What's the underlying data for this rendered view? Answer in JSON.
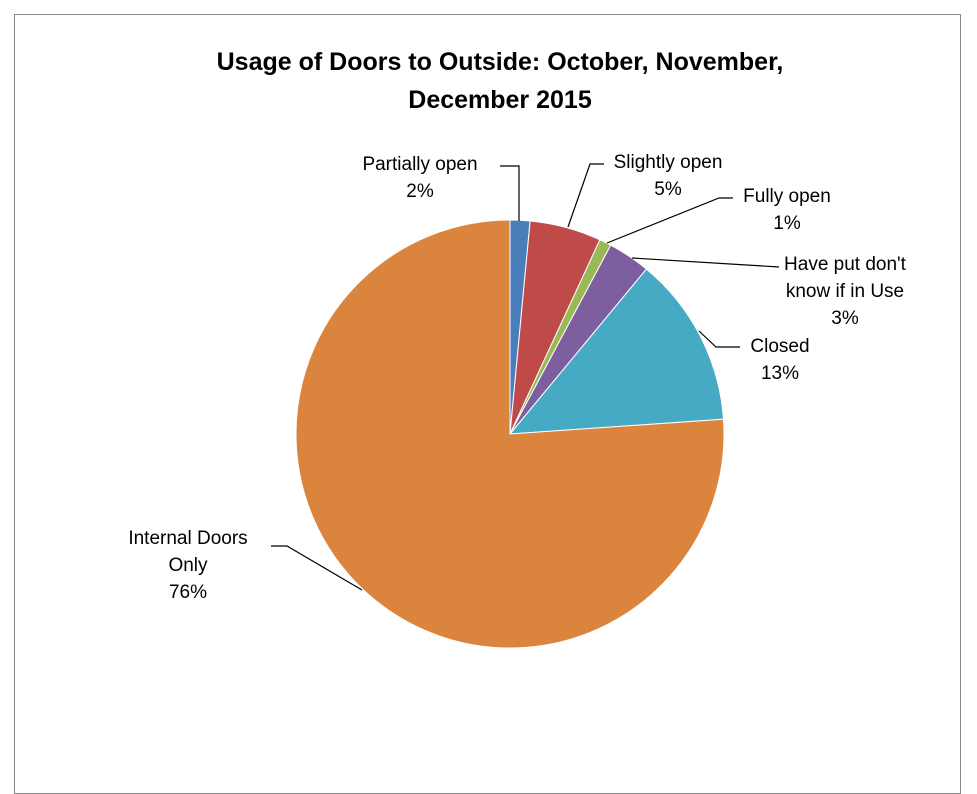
{
  "chart_data": {
    "type": "pie",
    "title_lines": [
      "Usage of Doors to Outside: October, November,",
      "December 2015"
    ],
    "slices": [
      {
        "name": "Partially open",
        "label_lines": [
          "Partially open",
          "2%"
        ],
        "value": 1.5,
        "percent_label": "2%",
        "color": "#4A7EBB"
      },
      {
        "name": "Slightly open",
        "label_lines": [
          "Slightly open",
          "5%"
        ],
        "value": 5.4,
        "percent_label": "5%",
        "color": "#BE4B48"
      },
      {
        "name": "Fully open",
        "label_lines": [
          "Fully open",
          "1%"
        ],
        "value": 0.9,
        "percent_label": "1%",
        "color": "#98B954"
      },
      {
        "name": "Have put don't know if in Use",
        "label_lines": [
          "Have put don't",
          "know if in Use",
          "3%"
        ],
        "value": 3.2,
        "percent_label": "3%",
        "color": "#7D5FA0"
      },
      {
        "name": "Closed",
        "label_lines": [
          "Closed",
          "13%"
        ],
        "value": 12.9,
        "percent_label": "13%",
        "color": "#46AAC5"
      },
      {
        "name": "Internal Doors Only",
        "label_lines": [
          "Internal Doors",
          "Only",
          "76%"
        ],
        "value": 76.1,
        "percent_label": "76%",
        "color": "#DB843D"
      }
    ],
    "start_angle_deg": 0,
    "direction": "clockwise"
  }
}
